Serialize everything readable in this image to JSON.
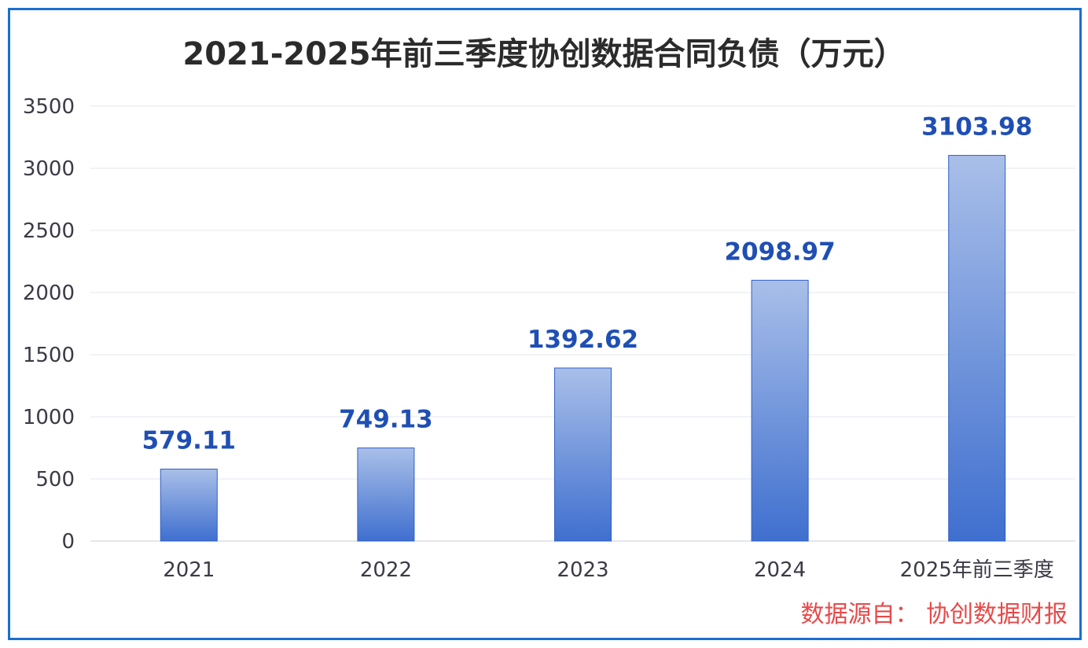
{
  "chart_data": {
    "type": "bar",
    "title": "2021-2025年前三季度协创数据合同负债（万元）",
    "categories": [
      "2021",
      "2022",
      "2023",
      "2024",
      "2025年前三季度"
    ],
    "values": [
      579.11,
      749.13,
      1392.62,
      2098.97,
      3103.98
    ],
    "data_labels": [
      "579.11",
      "749.13",
      "1392.62",
      "2098.97",
      "3103.98"
    ],
    "ylim": [
      0,
      3500
    ],
    "yticks": [
      0,
      500,
      1000,
      1500,
      2000,
      2500,
      3000,
      3500
    ],
    "grid": true,
    "xlabel": "",
    "ylabel": "",
    "colors": {
      "bar_top": "#a9bfe9",
      "bar_bottom": "#3f6fcf",
      "label": "#1f4fb4",
      "border": "#1a6fd0"
    }
  },
  "source": "数据源自： 协创数据财报"
}
